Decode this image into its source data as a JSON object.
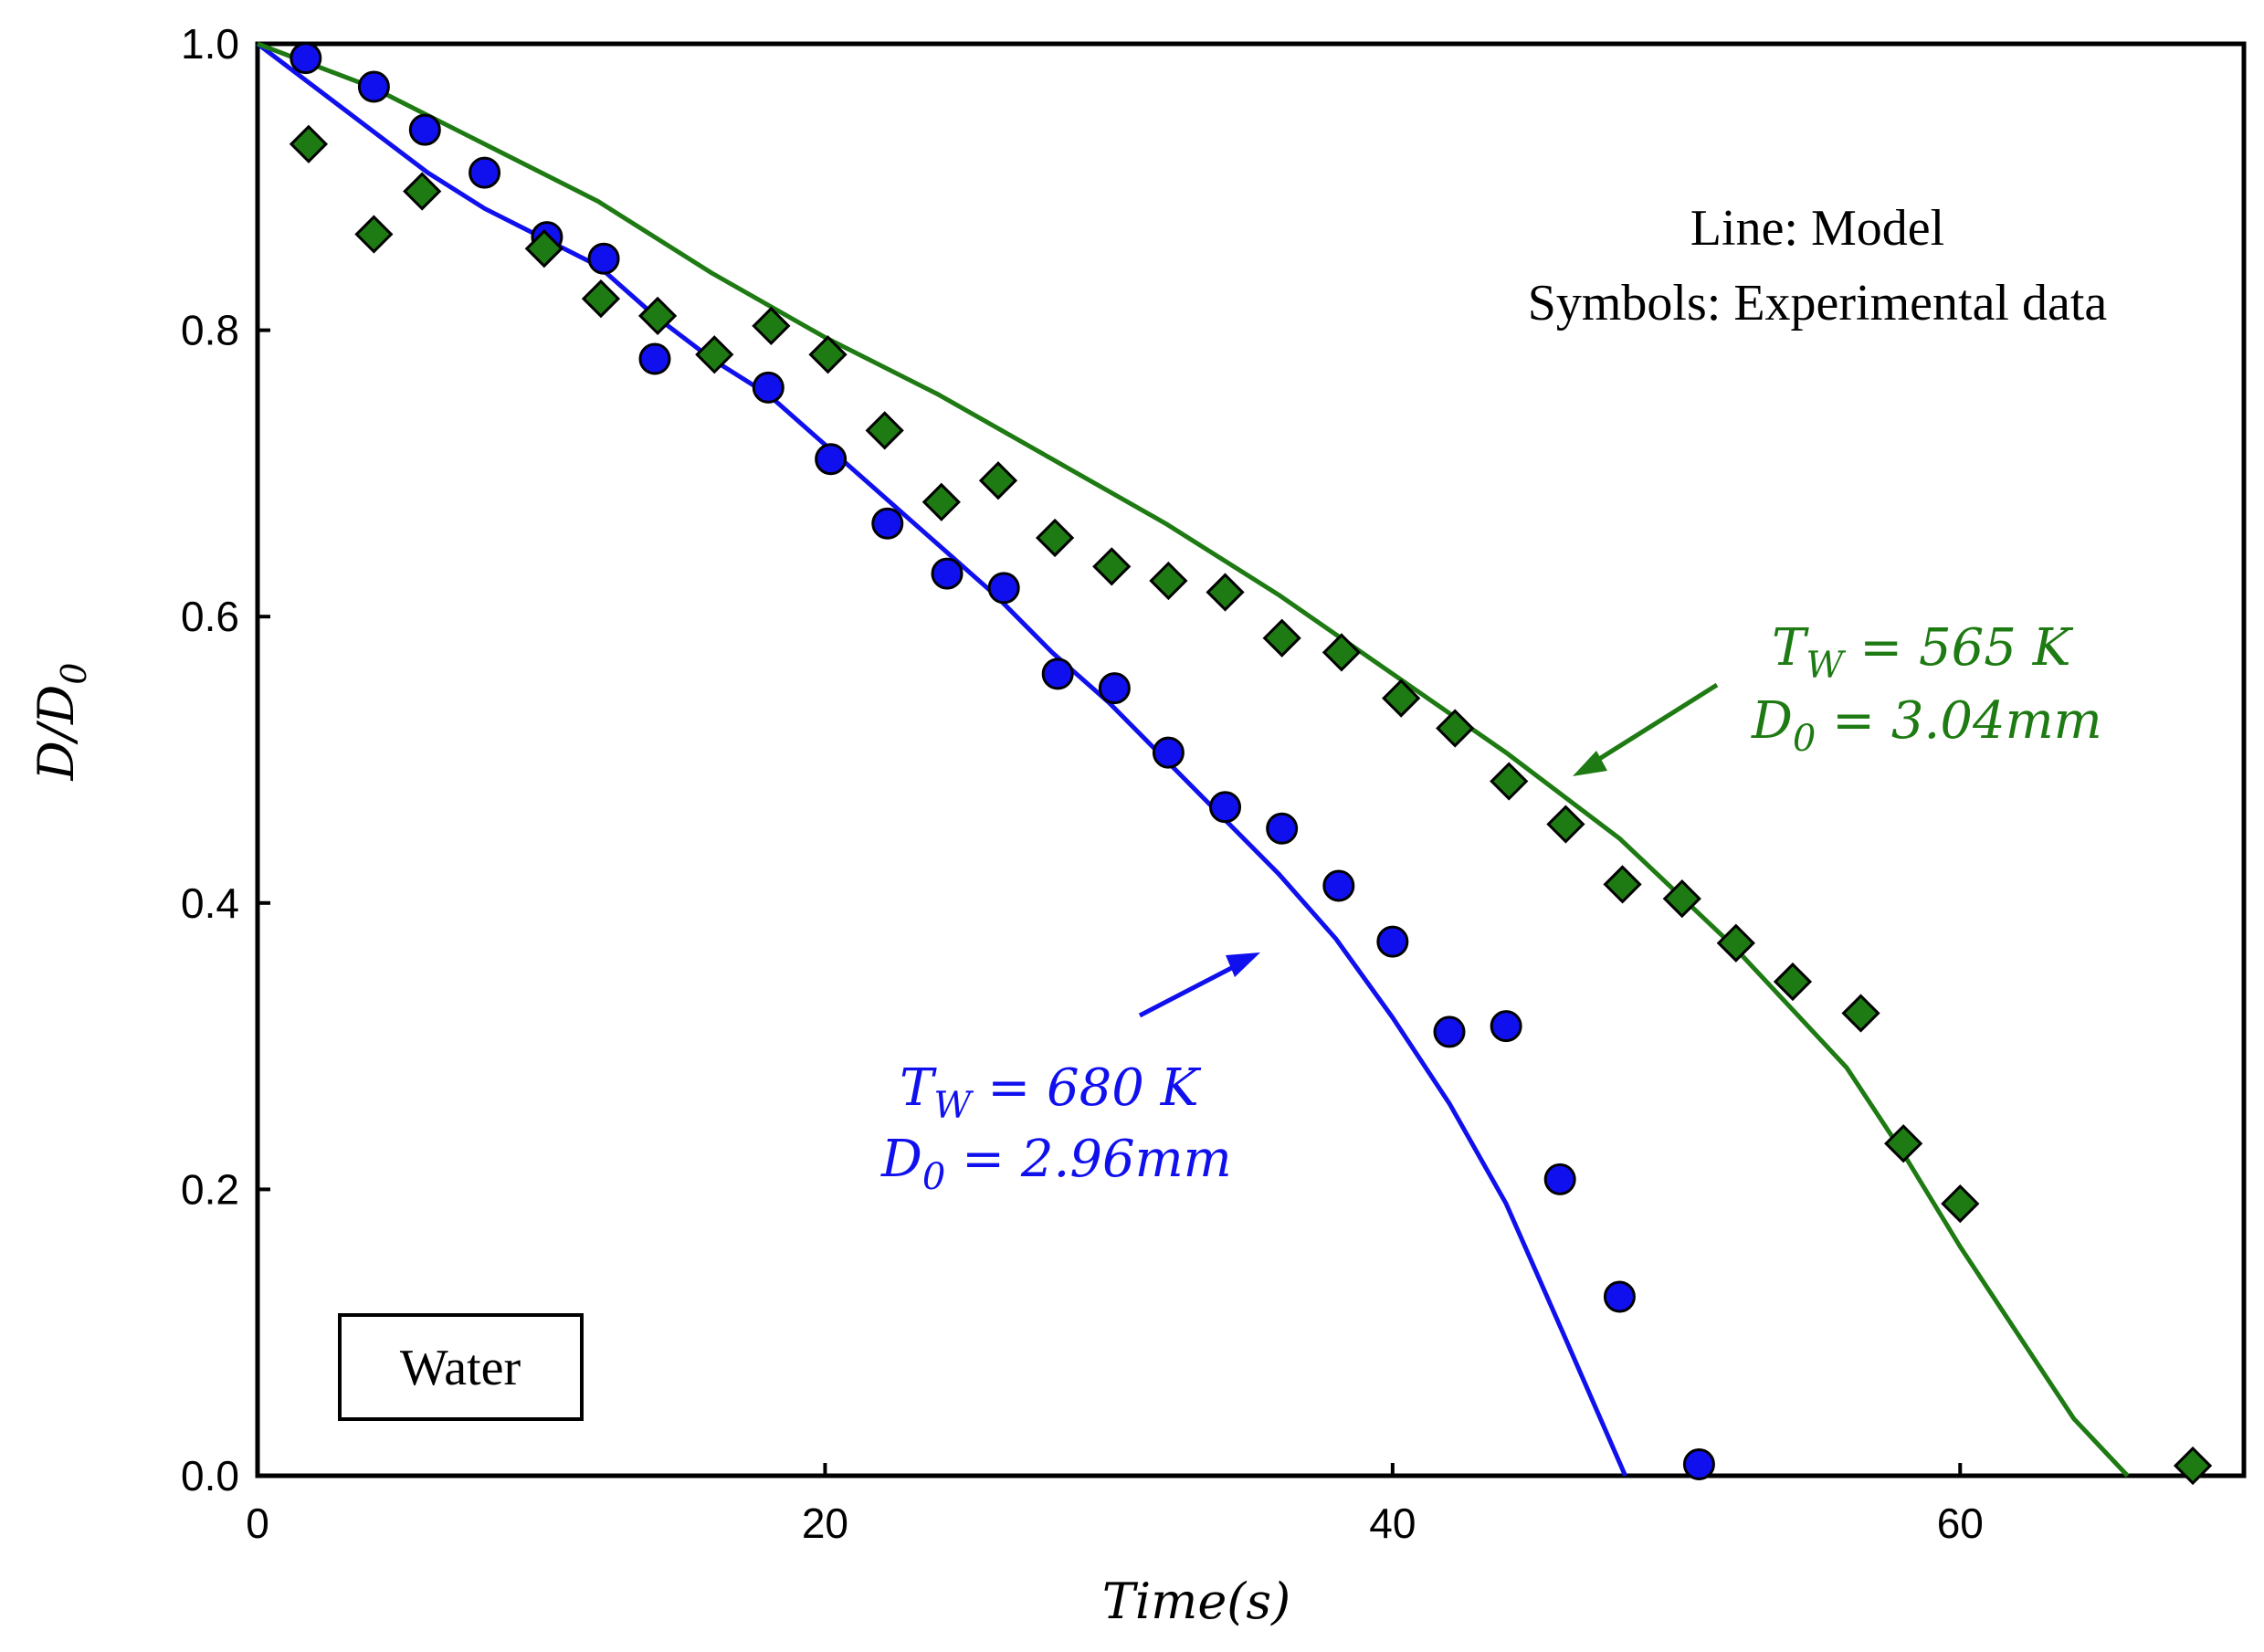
{
  "chart_data": {
    "type": "line",
    "title": "",
    "xlabel": "Time(s)",
    "ylabel": "D/D0",
    "xlim": [
      0,
      70
    ],
    "ylim": [
      0,
      1.0
    ],
    "xticks": [
      0,
      20,
      40,
      60
    ],
    "yticks": [
      0.0,
      0.2,
      0.4,
      0.6,
      0.8,
      1.0
    ],
    "xtick_labels": [
      "0",
      "20",
      "40",
      "60"
    ],
    "ytick_labels": [
      "0.0",
      "0.2",
      "0.4",
      "0.6",
      "0.8",
      "1.0"
    ],
    "grid": false,
    "colors": {
      "blue": "#1010ee",
      "green": "#1e7a12"
    },
    "series": [
      {
        "name": "Model TW = 680 K",
        "kind": "line",
        "color": "#1010ee",
        "x": [
          0,
          2,
          4,
          6,
          8,
          10,
          12,
          14,
          16,
          18,
          20,
          22,
          24,
          26,
          28,
          30,
          32,
          34,
          36,
          38,
          40,
          42,
          44,
          46,
          48.2
        ],
        "y": [
          1.0,
          0.97,
          0.94,
          0.91,
          0.885,
          0.865,
          0.845,
          0.81,
          0.78,
          0.755,
          0.72,
          0.685,
          0.65,
          0.615,
          0.575,
          0.54,
          0.5,
          0.46,
          0.42,
          0.375,
          0.32,
          0.26,
          0.19,
          0.1,
          0.0
        ]
      },
      {
        "name": "Model TW = 565 K",
        "kind": "line",
        "color": "#1e7a12",
        "x": [
          0,
          4,
          8,
          12,
          16,
          20,
          24,
          28,
          32,
          36,
          40,
          44,
          48,
          52,
          56,
          58,
          60,
          62,
          64,
          65.9
        ],
        "y": [
          1.0,
          0.97,
          0.93,
          0.89,
          0.84,
          0.795,
          0.755,
          0.71,
          0.665,
          0.615,
          0.56,
          0.505,
          0.445,
          0.37,
          0.285,
          0.225,
          0.16,
          0.1,
          0.04,
          0.0
        ]
      },
      {
        "name": "Experimental TW = 680 K",
        "kind": "scatter",
        "marker": "circle",
        "color": "#1010ee",
        "x": [
          1.7,
          4.1,
          5.9,
          8.0,
          10.2,
          12.2,
          14.0,
          18.0,
          20.2,
          22.2,
          24.3,
          26.3,
          28.2,
          30.2,
          32.1,
          34.1,
          36.1,
          38.1,
          40.0,
          42.0,
          44.0,
          45.9,
          48.0,
          50.8
        ],
        "y": [
          0.99,
          0.97,
          0.94,
          0.91,
          0.865,
          0.85,
          0.78,
          0.76,
          0.71,
          0.665,
          0.63,
          0.62,
          0.56,
          0.55,
          0.505,
          0.467,
          0.452,
          0.412,
          0.373,
          0.31,
          0.314,
          0.207,
          0.125,
          0.008
        ]
      },
      {
        "name": "Experimental TW = 565 K",
        "kind": "scatter",
        "marker": "diamond",
        "color": "#1e7a12",
        "x": [
          1.8,
          4.1,
          5.8,
          10.1,
          12.1,
          14.1,
          16.1,
          18.1,
          20.1,
          22.1,
          24.1,
          26.1,
          28.1,
          30.1,
          32.1,
          34.1,
          36.1,
          38.2,
          40.3,
          42.2,
          44.1,
          46.1,
          48.1,
          50.2,
          52.1,
          54.1,
          56.5,
          58.0,
          60.0,
          68.2
        ],
        "y": [
          0.93,
          0.867,
          0.897,
          0.857,
          0.822,
          0.81,
          0.783,
          0.803,
          0.783,
          0.73,
          0.68,
          0.695,
          0.655,
          0.635,
          0.625,
          0.617,
          0.585,
          0.575,
          0.543,
          0.522,
          0.485,
          0.455,
          0.413,
          0.403,
          0.372,
          0.345,
          0.323,
          0.232,
          0.19,
          0.007
        ]
      }
    ],
    "legend_note": {
      "line1": "Line: Model",
      "line2": "Symbols: Experimental data"
    },
    "annotations": {
      "green_t": "T",
      "green_t_sub": "W",
      "green_t_val": " = 565 K",
      "green_d": "D",
      "green_d_sub": "0",
      "green_d_val": " = 3.04mm",
      "blue_t": "T",
      "blue_t_sub": "W",
      "blue_t_val": " = 680 K",
      "blue_d": "D",
      "blue_d_sub": "0",
      "blue_d_val": " = 2.96mm"
    },
    "ylabel_parts": {
      "a": "D",
      "slash": "/",
      "b": "D",
      "b_sub": "0"
    },
    "box_label": "Water"
  }
}
